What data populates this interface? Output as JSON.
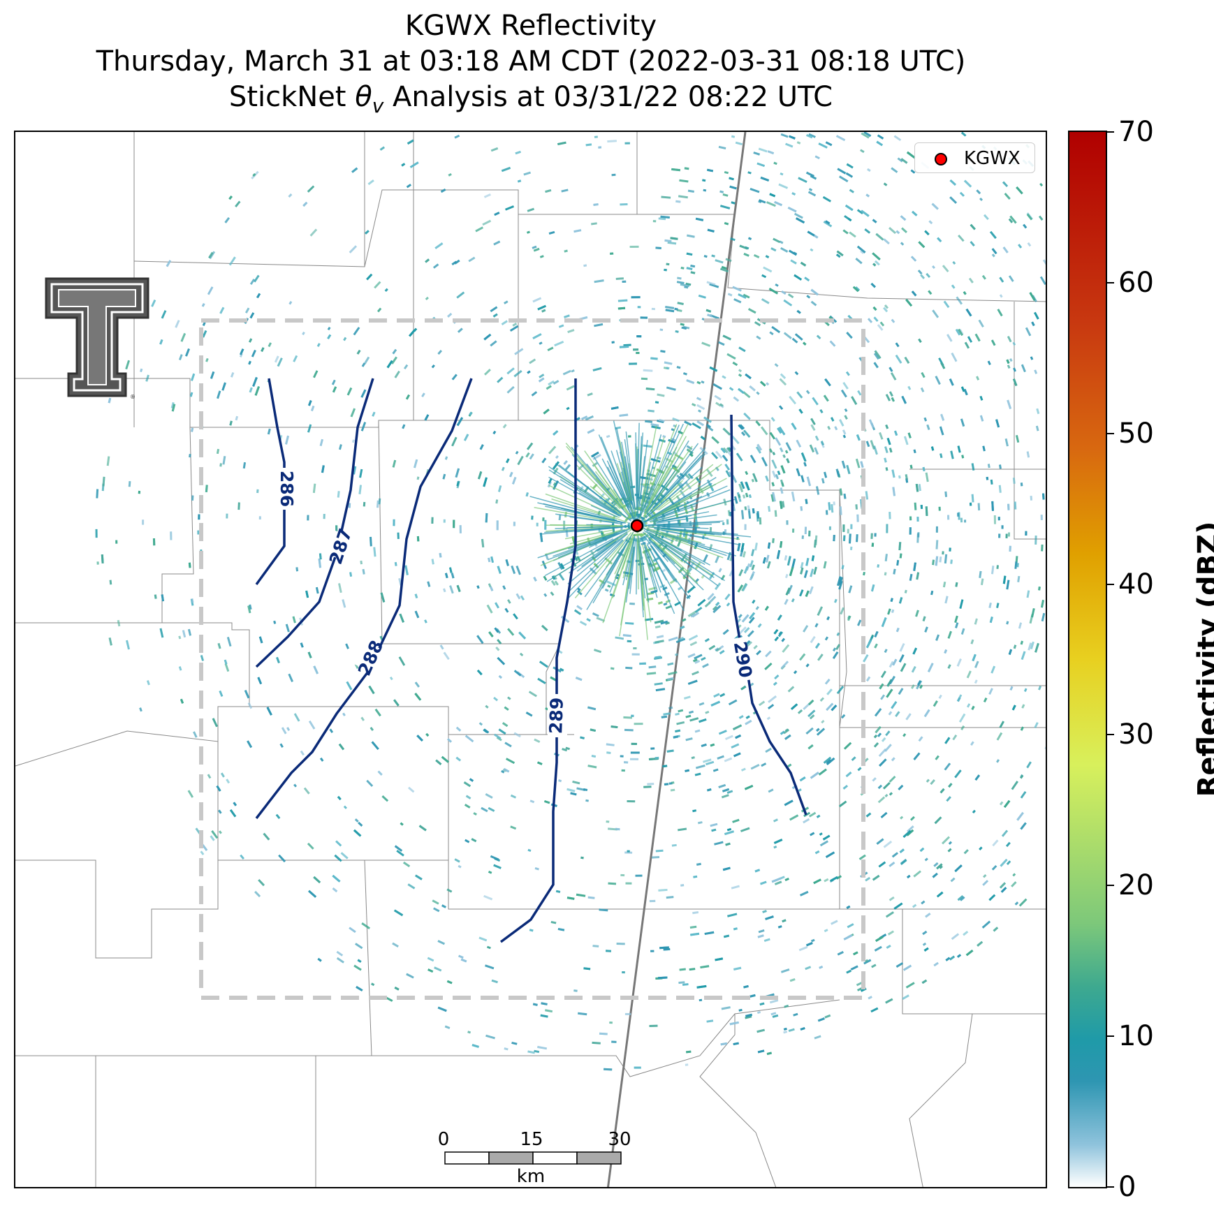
{
  "title": {
    "line1": "KGWX Reflectivity",
    "line2": "Thursday, March 31 at 03:18 AM CDT (2022-03-31 08:18 UTC)",
    "line3": "StickNet θv Analysis at 03/31/22 08:22 UTC"
  },
  "legend": {
    "label": "KGWX",
    "marker_color": "#ff0000"
  },
  "contours": {
    "color": "#0a2a78",
    "labels": [
      "286",
      "287",
      "288",
      "289",
      "290"
    ]
  },
  "colorbar": {
    "title": "Reflectivity (dBZ)",
    "ticks": [
      "0",
      "10",
      "20",
      "30",
      "40",
      "50",
      "60",
      "70"
    ],
    "min": 0,
    "max": 70
  },
  "scalebar": {
    "ticks": [
      "0",
      "15",
      "30"
    ],
    "unit": "km"
  },
  "colors": {
    "analysis_box": "#c8c8c8",
    "reflectivity_low": "#2e96b2",
    "reflectivity_mid": "#3ea98f",
    "county_lines": "#808080"
  }
}
